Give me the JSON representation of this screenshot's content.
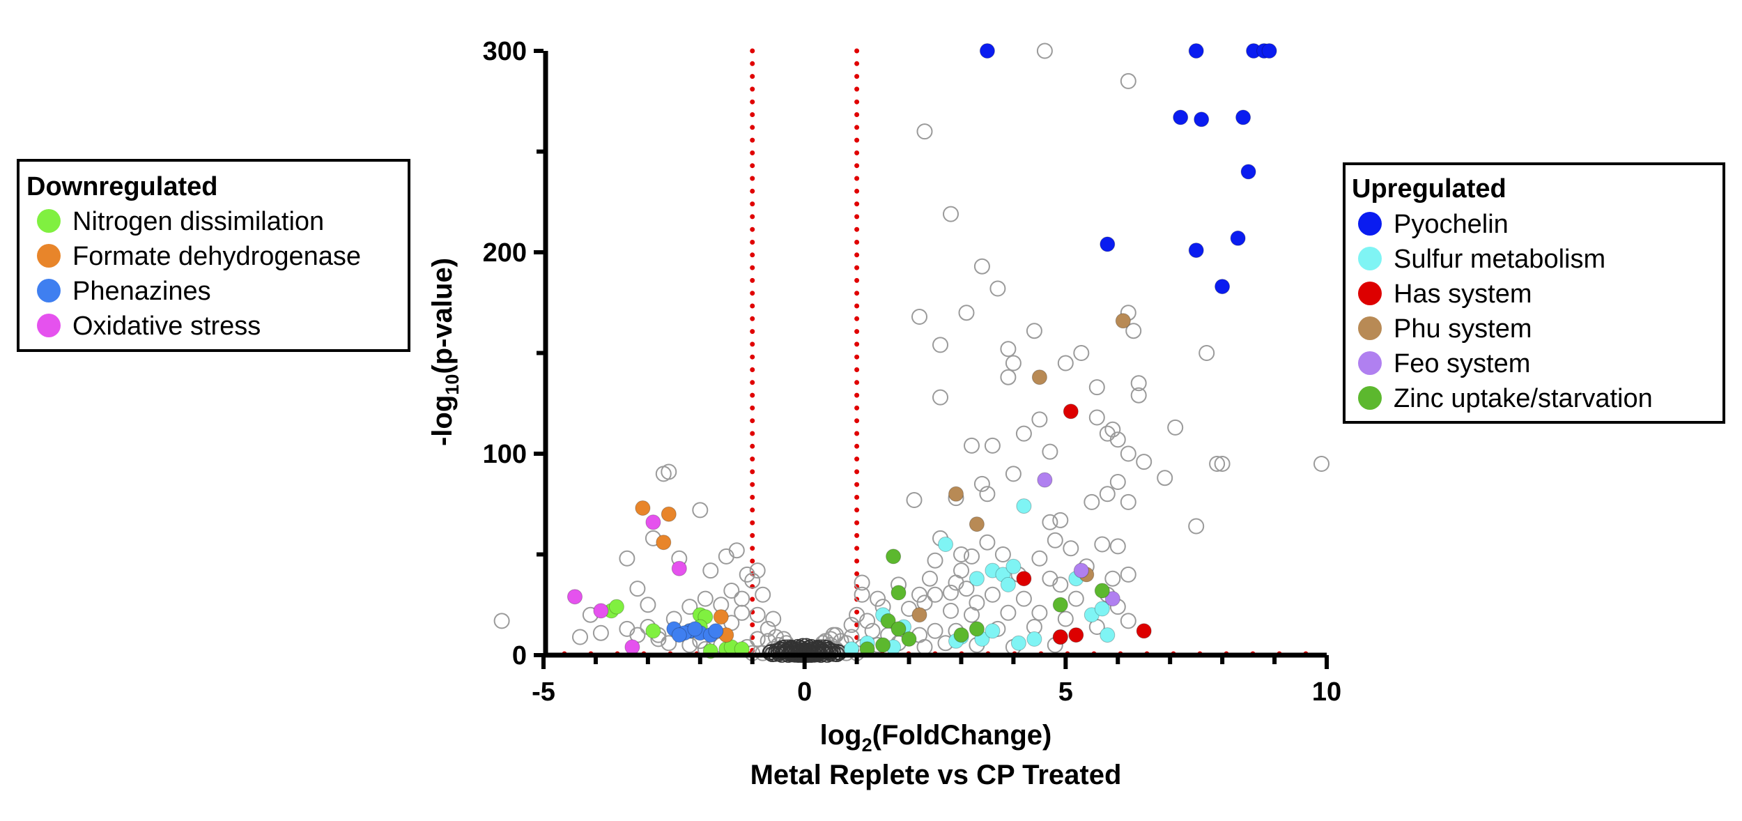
{
  "chart_data": {
    "type": "scatter",
    "xlabel": {
      "base": "log",
      "sub": "2",
      "rest": "(FoldChange)"
    },
    "ylabel": {
      "pre": "-log",
      "sub": "10",
      "rest": "(p-value)"
    },
    "subtitle": "Metal Replete vs CP Treated",
    "xlim": [
      -5,
      10
    ],
    "ylim": [
      0,
      300
    ],
    "x_ticks": [
      -5,
      0,
      5,
      10
    ],
    "y_ticks": [
      0,
      100,
      200,
      300
    ],
    "thresholds": {
      "x": [
        -1,
        1
      ],
      "y": 0,
      "color": "#e00000"
    },
    "legend_down": {
      "title": "Downregulated",
      "items": [
        {
          "label": "Nitrogen dissimilation",
          "color": "#80f040"
        },
        {
          "label": "Formate dehydrogenase",
          "color": "#e8852a"
        },
        {
          "label": "Phenazines",
          "color": "#3f7ff0"
        },
        {
          "label": "Oxidative stress",
          "color": "#e552ee"
        }
      ]
    },
    "legend_up": {
      "title": "Upregulated",
      "items": [
        {
          "label": "Pyochelin",
          "color": "#0a1cf0"
        },
        {
          "label": "Sulfur metabolism",
          "color": "#7ff4f4"
        },
        {
          "label": "Has system",
          "color": "#dd0000"
        },
        {
          "label": "Phu system",
          "color": "#b88a55"
        },
        {
          "label": "Feo system",
          "color": "#b080f0"
        },
        {
          "label": "Zinc uptake/starvation",
          "color": "#5cb82e"
        }
      ]
    },
    "series": [
      {
        "name": "Pyochelin",
        "color": "#0a1cf0",
        "points": [
          [
            3.5,
            300
          ],
          [
            7.5,
            300
          ],
          [
            8.6,
            300
          ],
          [
            8.8,
            300
          ],
          [
            8.9,
            300
          ],
          [
            7.2,
            267
          ],
          [
            7.6,
            266
          ],
          [
            8.4,
            267
          ],
          [
            8.5,
            240
          ],
          [
            5.8,
            204
          ],
          [
            7.5,
            201
          ],
          [
            8.3,
            207
          ],
          [
            8.0,
            183
          ]
        ]
      },
      {
        "name": "Sulfur metabolism",
        "color": "#7ff4f4",
        "points": [
          [
            4.2,
            74
          ],
          [
            2.7,
            55
          ],
          [
            3.6,
            42
          ],
          [
            3.8,
            40
          ],
          [
            4.0,
            44
          ],
          [
            3.3,
            38
          ],
          [
            3.9,
            35
          ],
          [
            5.2,
            38
          ],
          [
            5.5,
            20
          ],
          [
            5.7,
            23
          ],
          [
            1.5,
            20
          ],
          [
            1.9,
            14
          ],
          [
            3.0,
            9
          ],
          [
            3.4,
            8
          ],
          [
            4.9,
            9
          ],
          [
            5.8,
            10
          ],
          [
            2.9,
            7
          ],
          [
            4.4,
            8
          ],
          [
            1.7,
            4
          ],
          [
            0.9,
            3
          ],
          [
            1.2,
            6
          ],
          [
            3.6,
            12
          ],
          [
            4.1,
            6
          ]
        ]
      },
      {
        "name": "Has system",
        "color": "#dd0000",
        "points": [
          [
            5.1,
            121
          ],
          [
            4.2,
            38
          ],
          [
            4.9,
            9
          ],
          [
            5.2,
            10
          ],
          [
            6.5,
            12
          ]
        ]
      },
      {
        "name": "Phu system",
        "color": "#b88a55",
        "points": [
          [
            6.1,
            166
          ],
          [
            4.5,
            138
          ],
          [
            2.9,
            80
          ],
          [
            3.3,
            65
          ],
          [
            5.4,
            40
          ],
          [
            2.2,
            20
          ]
        ]
      },
      {
        "name": "Feo system",
        "color": "#b080f0",
        "points": [
          [
            4.6,
            87
          ],
          [
            5.3,
            42
          ],
          [
            5.9,
            28
          ]
        ]
      },
      {
        "name": "Zinc uptake/starvation",
        "color": "#5cb82e",
        "points": [
          [
            1.7,
            49
          ],
          [
            1.8,
            31
          ],
          [
            4.9,
            25
          ],
          [
            5.7,
            32
          ],
          [
            1.6,
            17
          ],
          [
            1.8,
            13
          ],
          [
            3.0,
            10
          ],
          [
            3.3,
            13
          ],
          [
            2.0,
            8
          ],
          [
            1.2,
            3
          ],
          [
            1.5,
            5
          ]
        ]
      },
      {
        "name": "Nitrogen dissimilation",
        "color": "#80f040",
        "points": [
          [
            -3.7,
            22
          ],
          [
            -3.6,
            24
          ],
          [
            -2.9,
            12
          ],
          [
            -2.0,
            20
          ],
          [
            -1.9,
            19
          ],
          [
            -2.0,
            14
          ],
          [
            -1.5,
            3
          ],
          [
            -1.4,
            4
          ],
          [
            -1.8,
            2
          ],
          [
            -1.2,
            3
          ],
          [
            -2.2,
            12
          ]
        ]
      },
      {
        "name": "Formate dehydrogenase",
        "color": "#e8852a",
        "points": [
          [
            -3.1,
            73
          ],
          [
            -2.6,
            70
          ],
          [
            -2.7,
            56
          ],
          [
            -1.6,
            19
          ],
          [
            -1.5,
            10
          ]
        ]
      },
      {
        "name": "Phenazines",
        "color": "#3f7ff0",
        "points": [
          [
            -2.5,
            13
          ],
          [
            -2.2,
            12
          ],
          [
            -2.3,
            11
          ],
          [
            -2.0,
            11
          ],
          [
            -1.8,
            10
          ],
          [
            -2.4,
            10
          ],
          [
            -1.7,
            12
          ],
          [
            -2.1,
            13
          ]
        ]
      },
      {
        "name": "Oxidative stress",
        "color": "#e552ee",
        "points": [
          [
            -4.4,
            29
          ],
          [
            -3.9,
            22
          ],
          [
            -2.9,
            66
          ],
          [
            -2.4,
            43
          ],
          [
            -3.3,
            4
          ]
        ]
      }
    ],
    "background": {
      "name": "All genes",
      "color": "#9a9a9a",
      "points": [
        [
          -5.8,
          17
        ],
        [
          -4.1,
          20
        ],
        [
          -3.2,
          33
        ],
        [
          -3.0,
          25
        ],
        [
          -2.8,
          8
        ],
        [
          -2.7,
          90
        ],
        [
          -2.6,
          91
        ],
        [
          -2.0,
          72
        ],
        [
          -2.4,
          48
        ],
        [
          -2.9,
          58
        ],
        [
          -3.4,
          48
        ],
        [
          -1.8,
          42
        ],
        [
          -1.5,
          49
        ],
        [
          -1.3,
          52
        ],
        [
          -1.1,
          40
        ],
        [
          -1.0,
          37
        ],
        [
          -0.9,
          42
        ],
        [
          -1.4,
          32
        ],
        [
          -1.2,
          28
        ],
        [
          -0.8,
          30
        ],
        [
          -1.6,
          25
        ],
        [
          -0.9,
          20
        ],
        [
          -1.2,
          21
        ],
        [
          -0.6,
          18
        ],
        [
          -0.7,
          13
        ],
        [
          -2.5,
          18
        ],
        [
          -3.0,
          14
        ],
        [
          -2.2,
          24
        ],
        [
          -1.9,
          28
        ],
        [
          -1.4,
          16
        ],
        [
          -4.3,
          9
        ],
        [
          -3.9,
          11
        ],
        [
          -3.4,
          13
        ],
        [
          -3.2,
          10
        ],
        [
          -2.8,
          10
        ],
        [
          -2.6,
          6
        ],
        [
          -2.2,
          5
        ],
        [
          -1.9,
          3
        ],
        [
          -2.0,
          7
        ],
        [
          -1.6,
          5
        ],
        [
          2.3,
          260
        ],
        [
          2.8,
          219
        ],
        [
          3.4,
          193
        ],
        [
          3.7,
          182
        ],
        [
          4.6,
          300
        ],
        [
          6.2,
          285
        ],
        [
          2.2,
          168
        ],
        [
          3.1,
          170
        ],
        [
          2.6,
          154
        ],
        [
          3.9,
          152
        ],
        [
          4.0,
          145
        ],
        [
          3.9,
          138
        ],
        [
          4.4,
          161
        ],
        [
          5.0,
          145
        ],
        [
          5.3,
          150
        ],
        [
          2.6,
          128
        ],
        [
          3.6,
          104
        ],
        [
          4.5,
          117
        ],
        [
          5.6,
          133
        ],
        [
          5.6,
          118
        ],
        [
          5.8,
          110
        ],
        [
          5.9,
          112
        ],
        [
          6.0,
          107
        ],
        [
          6.2,
          170
        ],
        [
          6.3,
          161
        ],
        [
          6.4,
          135
        ],
        [
          6.4,
          129
        ],
        [
          6.2,
          100
        ],
        [
          6.5,
          96
        ],
        [
          7.1,
          113
        ],
        [
          7.7,
          150
        ],
        [
          7.9,
          95
        ],
        [
          8.0,
          95
        ],
        [
          9.9,
          95
        ],
        [
          7.5,
          64
        ],
        [
          6.9,
          88
        ],
        [
          6.0,
          86
        ],
        [
          6.2,
          76
        ],
        [
          5.8,
          80
        ],
        [
          4.7,
          101
        ],
        [
          4.2,
          110
        ],
        [
          3.2,
          104
        ],
        [
          3.5,
          80
        ],
        [
          3.4,
          85
        ],
        [
          4.0,
          90
        ],
        [
          2.9,
          78
        ],
        [
          2.1,
          77
        ],
        [
          2.6,
          58
        ],
        [
          2.5,
          47
        ],
        [
          3.0,
          50
        ],
        [
          3.2,
          49
        ],
        [
          3.5,
          56
        ],
        [
          4.7,
          66
        ],
        [
          4.9,
          67
        ],
        [
          4.8,
          57
        ],
        [
          5.5,
          76
        ],
        [
          5.7,
          55
        ],
        [
          6.0,
          54
        ],
        [
          5.1,
          53
        ],
        [
          5.4,
          44
        ],
        [
          6.2,
          40
        ],
        [
          5.9,
          38
        ],
        [
          4.5,
          48
        ],
        [
          3.8,
          50
        ],
        [
          3.1,
          33
        ],
        [
          2.8,
          31
        ],
        [
          2.5,
          30
        ],
        [
          2.0,
          23
        ],
        [
          2.3,
          26
        ],
        [
          2.8,
          22
        ],
        [
          3.2,
          20
        ],
        [
          3.9,
          21
        ],
        [
          4.5,
          21
        ],
        [
          5.0,
          18
        ],
        [
          5.6,
          14
        ],
        [
          6.2,
          17
        ],
        [
          4.4,
          14
        ],
        [
          3.7,
          13
        ],
        [
          2.9,
          12
        ],
        [
          2.5,
          12
        ],
        [
          2.2,
          10
        ],
        [
          1.6,
          10
        ],
        [
          1.3,
          12
        ],
        [
          1.5,
          24
        ],
        [
          1.4,
          28
        ],
        [
          1.1,
          30
        ],
        [
          1.1,
          36
        ],
        [
          1.0,
          20
        ],
        [
          1.2,
          17
        ],
        [
          0.9,
          15
        ],
        [
          0.6,
          10
        ],
        [
          0.5,
          8
        ],
        [
          0.8,
          6
        ],
        [
          1.4,
          5
        ],
        [
          1.8,
          6
        ],
        [
          2.3,
          4
        ],
        [
          2.7,
          6
        ],
        [
          3.3,
          5
        ],
        [
          4.0,
          4
        ],
        [
          4.8,
          5
        ],
        [
          5.2,
          28
        ],
        [
          4.9,
          35
        ],
        [
          4.2,
          28
        ],
        [
          3.6,
          30
        ],
        [
          3.3,
          26
        ],
        [
          2.9,
          36
        ],
        [
          2.4,
          38
        ],
        [
          2.2,
          30
        ],
        [
          1.8,
          35
        ],
        [
          3.0,
          42
        ],
        [
          4.1,
          40
        ],
        [
          4.7,
          38
        ],
        [
          5.8,
          30
        ],
        [
          6.0,
          24
        ],
        [
          -0.6,
          3
        ],
        [
          -0.5,
          2
        ],
        [
          -0.4,
          2
        ],
        [
          -0.3,
          1
        ],
        [
          -0.2,
          1
        ],
        [
          -0.1,
          0.5
        ],
        [
          0.0,
          0.3
        ],
        [
          0.1,
          0.5
        ],
        [
          0.2,
          1
        ],
        [
          0.3,
          1
        ],
        [
          0.4,
          2
        ],
        [
          0.5,
          2
        ],
        [
          0.6,
          3
        ],
        [
          -0.5,
          5
        ],
        [
          -0.3,
          4
        ],
        [
          0.3,
          4
        ],
        [
          0.5,
          5
        ],
        [
          -0.7,
          7
        ],
        [
          0.7,
          7
        ],
        [
          -0.9,
          8
        ],
        [
          0.9,
          9
        ],
        [
          -1.1,
          4
        ],
        [
          1.1,
          4
        ],
        [
          -0.4,
          8
        ],
        [
          0.4,
          7
        ],
        [
          -0.2,
          3
        ],
        [
          0.2,
          3
        ],
        [
          -0.8,
          1
        ],
        [
          0.8,
          1
        ],
        [
          -1.0,
          1
        ],
        [
          1.0,
          1
        ],
        [
          -0.6,
          0.5
        ],
        [
          0.6,
          0.5
        ],
        [
          -0.35,
          6
        ],
        [
          0.35,
          6
        ],
        [
          0.0,
          2
        ],
        [
          -0.15,
          2
        ],
        [
          0.15,
          2
        ],
        [
          -0.55,
          9
        ],
        [
          0.55,
          10
        ]
      ]
    }
  }
}
